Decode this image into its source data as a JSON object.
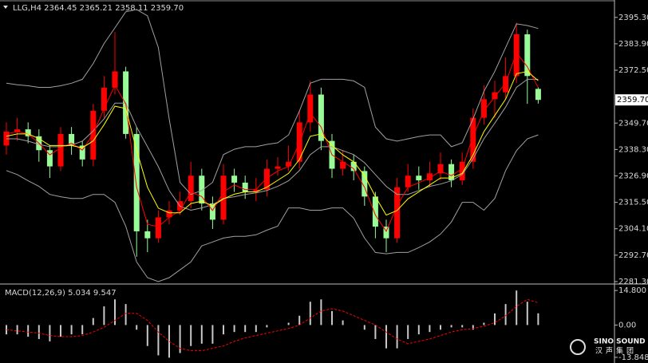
{
  "chart_data": [
    {
      "type": "candlestick",
      "title": "LLG,H4  2364.45 2365.21 2358.11 2359.70",
      "open": [
        2340,
        2346,
        2347,
        2344,
        2338,
        2331,
        2345,
        2340,
        2334,
        2355,
        2365,
        2372,
        2345,
        2303,
        2300,
        2309,
        2312,
        2316,
        2327,
        2315,
        2308,
        2327,
        2324,
        2320,
        2321,
        2330,
        2331,
        2333,
        2350,
        2362,
        2342,
        2330,
        2333,
        2329,
        2318,
        2305,
        2300,
        2322,
        2327,
        2325,
        2328,
        2332,
        2325,
        2333,
        2352,
        2360,
        2363,
        2370,
        2388,
        2364.45
      ],
      "high": [
        2350,
        2352,
        2350,
        2347,
        2340,
        2348,
        2348,
        2342,
        2358,
        2370,
        2389,
        2374,
        2348,
        2308,
        2312,
        2316,
        2320,
        2333,
        2330,
        2318,
        2332,
        2330,
        2327,
        2326,
        2334,
        2335,
        2340,
        2355,
        2368,
        2365,
        2345,
        2338,
        2336,
        2331,
        2320,
        2308,
        2326,
        2332,
        2331,
        2333,
        2337,
        2334,
        2337,
        2356,
        2366,
        2368,
        2378,
        2393,
        2390,
        2365.21
      ],
      "low": [
        2336,
        2342,
        2341,
        2333,
        2326,
        2329,
        2336,
        2331,
        2331,
        2352,
        2362,
        2343,
        2292,
        2294,
        2298,
        2306,
        2310,
        2313,
        2312,
        2304,
        2306,
        2320,
        2317,
        2316,
        2318,
        2327,
        2329,
        2330,
        2346,
        2338,
        2326,
        2327,
        2325,
        2314,
        2300,
        2294,
        2298,
        2320,
        2321,
        2322,
        2325,
        2322,
        2323,
        2330,
        2349,
        2352,
        2360,
        2367,
        2358,
        2358.11
      ],
      "close": [
        2346,
        2347,
        2344,
        2338,
        2331,
        2345,
        2340,
        2334,
        2355,
        2365,
        2372,
        2345,
        2303,
        2300,
        2309,
        2312,
        2316,
        2327,
        2315,
        2308,
        2327,
        2324,
        2320,
        2321,
        2330,
        2331,
        2333,
        2350,
        2362,
        2342,
        2330,
        2333,
        2329,
        2318,
        2305,
        2300,
        2322,
        2327,
        2325,
        2328,
        2332,
        2325,
        2333,
        2352,
        2360,
        2363,
        2370,
        2388,
        2370,
        2359.7
      ],
      "up_color": "#ff0000",
      "down_color": "#98fb98",
      "lines": [
        {
          "color": "#a0a0a0",
          "values": [
            2366.9,
            2366.2,
            2365.8,
            2365.1,
            2365.1,
            2365.8,
            2366.9,
            2368.6,
            2375.4,
            2384.0,
            2390.8,
            2397.7,
            2398.7,
            2396.0,
            2382.3,
            2351.5,
            2324.1,
            2318.9,
            2320.6,
            2324.1,
            2336.1,
            2338.4,
            2339.5,
            2339.5,
            2340.5,
            2341.2,
            2344.6,
            2354.9,
            2366.9,
            2368.6,
            2368.6,
            2368.6,
            2367.9,
            2365.1,
            2348.0,
            2342.9,
            2341.9,
            2342.9,
            2343.9,
            2344.6,
            2344.6,
            2339.5,
            2341.2,
            2351.5,
            2363.4,
            2372.0,
            2382.3,
            2392.5,
            2391.8,
            2390.5
          ]
        },
        {
          "color": "#a0a0a0",
          "values": [
            2342.9,
            2342.9,
            2341.9,
            2340.5,
            2339.5,
            2339.5,
            2340.2,
            2341.9,
            2346.3,
            2351.5,
            2358.3,
            2358.3,
            2348.0,
            2339.5,
            2330.9,
            2320.6,
            2313.8,
            2312.1,
            2313.1,
            2314.5,
            2317.2,
            2317.9,
            2318.9,
            2319.6,
            2320.6,
            2322.4,
            2324.8,
            2329.2,
            2336.1,
            2339.5,
            2339.5,
            2337.8,
            2336.1,
            2332.6,
            2327.5,
            2322.4,
            2318.9,
            2318.9,
            2320.6,
            2322.4,
            2323.4,
            2324.8,
            2327.5,
            2334.3,
            2342.9,
            2349.7,
            2356.6,
            2365.1,
            2368.6,
            2368.6
          ]
        },
        {
          "color": "#a0a0a0",
          "values": [
            2329.2,
            2327.5,
            2324.8,
            2322.4,
            2318.9,
            2317.9,
            2317.2,
            2317.2,
            2318.9,
            2318.9,
            2315.5,
            2305.2,
            2289.8,
            2283.0,
            2281.3,
            2283.0,
            2286.4,
            2289.8,
            2296.7,
            2298.4,
            2300.1,
            2300.8,
            2300.8,
            2301.5,
            2303.5,
            2305.2,
            2313.1,
            2313.1,
            2312.1,
            2312.1,
            2313.1,
            2313.1,
            2308.7,
            2300.1,
            2293.9,
            2293.3,
            2293.9,
            2293.9,
            2296.0,
            2298.4,
            2301.8,
            2307.0,
            2315.5,
            2315.5,
            2312.1,
            2317.2,
            2329.2,
            2337.8,
            2342.9,
            2344.6
          ]
        },
        {
          "color": "#ff0000",
          "values": [
            2345,
            2346,
            2345,
            2341,
            2336,
            2339,
            2341,
            2338,
            2345,
            2356,
            2366,
            2358,
            2322,
            2306,
            2305,
            2309,
            2312,
            2320,
            2318,
            2312,
            2320,
            2323,
            2321,
            2321,
            2326,
            2329,
            2331,
            2341,
            2354,
            2348,
            2336,
            2333,
            2330,
            2322,
            2310,
            2303,
            2314,
            2322,
            2324,
            2326,
            2329,
            2327,
            2330,
            2344,
            2355,
            2361,
            2367,
            2380,
            2374,
            2365
          ]
        },
        {
          "color": "#ffff00",
          "values": [
            2344,
            2345,
            2345,
            2343,
            2340,
            2340,
            2340,
            2339,
            2342,
            2349,
            2357,
            2356,
            2338,
            2322,
            2313,
            2311,
            2311,
            2315,
            2316,
            2314,
            2317,
            2319,
            2320,
            2320,
            2322,
            2325,
            2328,
            2334,
            2344,
            2345,
            2340,
            2336,
            2333,
            2327,
            2318,
            2310,
            2312,
            2317,
            2320,
            2323,
            2326,
            2326,
            2328,
            2336,
            2346,
            2353,
            2360,
            2371,
            2372,
            2368
          ]
        }
      ],
      "ylim": [
        2280.6,
        2402.8
      ],
      "yticks": [
        {
          "value": 2395.3,
          "label": "2395.30"
        },
        {
          "value": 2383.9,
          "label": "2383.90"
        },
        {
          "value": 2372.5,
          "label": "2372.50"
        },
        {
          "value": 2349.7,
          "label": "2349.70"
        },
        {
          "value": 2338.3,
          "label": "2338.30"
        },
        {
          "value": 2326.9,
          "label": "2326.90"
        },
        {
          "value": 2315.5,
          "label": "2315.50"
        },
        {
          "value": 2304.1,
          "label": "2304.10"
        },
        {
          "value": 2292.7,
          "label": "2292.70"
        },
        {
          "value": 2281.3,
          "label": "2281.30"
        }
      ],
      "last_price": {
        "value": 2359.7,
        "label": "2359.70"
      }
    },
    {
      "type": "macd",
      "title": "MACD(12,26,9) 5.034 9.547",
      "values": [
        -4,
        -4,
        -5,
        -6,
        -7,
        -5,
        -4,
        -4,
        3,
        8,
        11,
        9,
        -2,
        -9,
        -13,
        -14,
        -12,
        -9,
        -8,
        -8,
        -4,
        -3,
        -3,
        -3,
        -1,
        0,
        1,
        4,
        10,
        11,
        6,
        2,
        0,
        -2,
        -6,
        -10,
        -10,
        -6,
        -4,
        -3,
        -2,
        -1,
        -1,
        -2,
        1,
        5,
        9,
        14.8,
        10,
        5.034
      ],
      "color": "#c8c8c8",
      "signal": {
        "color": "#ff0000",
        "values": [
          -2,
          -2.5,
          -3,
          -3.5,
          -4.5,
          -5,
          -5,
          -4.5,
          -3,
          -1,
          2,
          5,
          5,
          2,
          -3,
          -7,
          -10,
          -11,
          -11,
          -10,
          -9,
          -7,
          -5.5,
          -4.5,
          -3.5,
          -2.5,
          -1.5,
          0,
          3,
          6,
          7,
          6,
          4,
          2,
          0,
          -3,
          -6,
          -8,
          -7,
          -6,
          -4.5,
          -3,
          -2,
          -1.5,
          -0.5,
          1,
          4,
          8,
          11,
          9.547
        ]
      },
      "ylim": [
        -15.6,
        17.25
      ],
      "yticks": [
        {
          "value": 14.8,
          "label": "14.800"
        },
        {
          "value": 0,
          "label": "0.00"
        },
        {
          "value": -13.848,
          "label": "-13.848"
        }
      ]
    }
  ],
  "watermark": {
    "brand": "SINO SOUND",
    "name": "汉声集团"
  }
}
